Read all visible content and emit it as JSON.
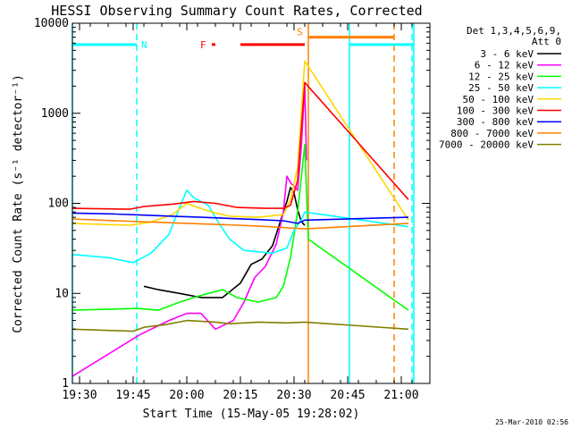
{
  "chart_data": {
    "type": "line",
    "title": "HESSI Observing Summary Count Rates, Corrected",
    "xlabel": "Start Time (15-May-05 19:28:02)",
    "ylabel": "Corrected Count Rate (s⁻¹ detector⁻¹)",
    "y_scale": "log",
    "ylim": [
      1,
      10000
    ],
    "xlim": [
      "19:28",
      "21:08"
    ],
    "x_ticks": [
      "19:30",
      "19:45",
      "20:00",
      "20:15",
      "20:30",
      "20:45",
      "21:00"
    ],
    "y_ticks": [
      "1",
      "10",
      "100",
      "1000",
      "10000"
    ],
    "grid": false,
    "legend_position": "right",
    "legend_header": [
      "Det 1,3,4,5,6,9,",
      "Att 0"
    ],
    "timestamp": "25-Mar-2010 02:56",
    "series": [
      {
        "name": "3 - 6 keV",
        "color": "#000000",
        "points": [
          [
            "19:48",
            12
          ],
          [
            "19:52",
            11
          ],
          [
            "19:58",
            10
          ],
          [
            "20:04",
            9
          ],
          [
            "20:10",
            9
          ],
          [
            "20:15",
            13
          ],
          [
            "20:18",
            21
          ],
          [
            "20:21",
            24
          ],
          [
            "20:24",
            34
          ],
          [
            "20:26",
            60
          ],
          [
            "20:28",
            105
          ],
          [
            "20:29",
            150
          ],
          [
            "20:30",
            130
          ],
          [
            "20:31",
            85
          ],
          [
            "20:32",
            63
          ],
          [
            "20:33",
            57
          ]
        ]
      },
      {
        "name": "6 - 12 keV",
        "color": "#ff00ff",
        "points": [
          [
            "19:28",
            1.2
          ],
          [
            "19:47",
            3.5
          ],
          [
            "19:55",
            5
          ],
          [
            "20:00",
            6
          ],
          [
            "20:04",
            6
          ],
          [
            "20:08",
            4
          ],
          [
            "20:13",
            5
          ],
          [
            "20:16",
            8
          ],
          [
            "20:19",
            15
          ],
          [
            "20:22",
            20
          ],
          [
            "20:25",
            35
          ],
          [
            "20:27",
            80
          ],
          [
            "20:28",
            200
          ],
          [
            "20:29",
            170
          ],
          [
            "20:31",
            140
          ],
          [
            "20:32",
            400
          ],
          [
            "20:33",
            2000
          ],
          [
            "20:33:30",
            300
          ]
        ]
      },
      {
        "name": "12 - 25 keV",
        "color": "#00ff00",
        "points": [
          [
            "19:28",
            6.5
          ],
          [
            "19:46",
            6.8
          ],
          [
            "19:52",
            6.5
          ],
          [
            "19:58",
            8
          ],
          [
            "20:02",
            9
          ],
          [
            "20:06",
            10
          ],
          [
            "20:10",
            11
          ],
          [
            "20:14",
            9
          ],
          [
            "20:20",
            8
          ],
          [
            "20:25",
            9
          ],
          [
            "20:27",
            12
          ],
          [
            "20:29",
            25
          ],
          [
            "20:31",
            80
          ],
          [
            "20:33",
            450
          ],
          [
            "20:34",
            40
          ],
          [
            "21:02",
            6.5
          ],
          [
            "21:03:30",
            5
          ]
        ]
      },
      {
        "name": "25 - 50 keV",
        "color": "#00ffff",
        "points": [
          [
            "19:28",
            27
          ],
          [
            "19:38",
            25
          ],
          [
            "19:45",
            22
          ],
          [
            "19:50",
            28
          ],
          [
            "19:55",
            45
          ],
          [
            "19:58",
            90
          ],
          [
            "20:00",
            140
          ],
          [
            "20:02",
            115
          ],
          [
            "20:06",
            95
          ],
          [
            "20:09",
            60
          ],
          [
            "20:12",
            40
          ],
          [
            "20:16",
            30
          ],
          [
            "20:24",
            28
          ],
          [
            "20:28",
            32
          ],
          [
            "20:30",
            50
          ],
          [
            "20:32",
            65
          ],
          [
            "20:33",
            80
          ],
          [
            "21:02",
            55
          ],
          [
            "21:03:30",
            45
          ]
        ]
      },
      {
        "name": "50 - 100 keV",
        "color": "#ffd700",
        "points": [
          [
            "19:28",
            60
          ],
          [
            "19:44",
            57
          ],
          [
            "19:50",
            62
          ],
          [
            "19:56",
            75
          ],
          [
            "20:00",
            100
          ],
          [
            "20:03",
            90
          ],
          [
            "20:07",
            80
          ],
          [
            "20:12",
            72
          ],
          [
            "20:20",
            70
          ],
          [
            "20:27",
            75
          ],
          [
            "20:29",
            110
          ],
          [
            "20:31",
            250
          ],
          [
            "20:33",
            3800
          ],
          [
            "21:02",
            65
          ],
          [
            "21:03:30",
            58
          ]
        ]
      },
      {
        "name": "100 - 300 keV",
        "color": "#ff0000",
        "points": [
          [
            "19:28",
            88
          ],
          [
            "19:44",
            86
          ],
          [
            "19:48",
            92
          ],
          [
            "19:56",
            98
          ],
          [
            "20:02",
            105
          ],
          [
            "20:08",
            100
          ],
          [
            "20:14",
            90
          ],
          [
            "20:22",
            88
          ],
          [
            "20:27",
            88
          ],
          [
            "20:29",
            95
          ],
          [
            "20:31",
            180
          ],
          [
            "20:33",
            2200
          ],
          [
            "21:02",
            110
          ],
          [
            "21:03:30",
            95
          ]
        ]
      },
      {
        "name": "300 - 800 keV",
        "color": "#0000ff",
        "points": [
          [
            "19:28",
            78
          ],
          [
            "19:40",
            76
          ],
          [
            "19:48",
            74
          ],
          [
            "19:56",
            72
          ],
          [
            "20:04",
            70
          ],
          [
            "20:12",
            68
          ],
          [
            "20:20",
            66
          ],
          [
            "20:27",
            64
          ],
          [
            "20:31",
            60
          ],
          [
            "20:33",
            65
          ],
          [
            "21:02",
            70
          ],
          [
            "21:03:30",
            62
          ]
        ]
      },
      {
        "name": "800 - 7000 keV",
        "color": "#ff8000",
        "points": [
          [
            "19:28",
            67
          ],
          [
            "19:40",
            64
          ],
          [
            "19:50",
            62
          ],
          [
            "20:00",
            60
          ],
          [
            "20:10",
            58
          ],
          [
            "20:20",
            56
          ],
          [
            "20:33",
            52
          ],
          [
            "21:02",
            60
          ],
          [
            "21:03:30",
            57
          ]
        ]
      },
      {
        "name": "7000 - 20000 keV",
        "color": "#808000",
        "points": [
          [
            "19:28",
            4
          ],
          [
            "19:45",
            3.8
          ],
          [
            "19:48",
            4.2
          ],
          [
            "19:54",
            4.5
          ],
          [
            "20:00",
            5
          ],
          [
            "20:08",
            4.8
          ],
          [
            "20:12",
            4.6
          ],
          [
            "20:20",
            4.8
          ],
          [
            "20:28",
            4.7
          ],
          [
            "20:33",
            4.8
          ],
          [
            "21:02",
            4
          ],
          [
            "21:03:30",
            3.6
          ]
        ]
      }
    ],
    "markers": {
      "night_label": "N",
      "saa_label": "S",
      "flare_label": "F",
      "cyan_solid_lines": [
        "19:28",
        "20:45:30",
        "21:03:30"
      ],
      "cyan_dashed_lines": [
        "19:46",
        "21:03"
      ],
      "orange_solid_lines": [
        "20:34"
      ],
      "orange_dashed_lines": [
        "20:58"
      ],
      "cyan_bars": [
        [
          "19:28",
          "19:46"
        ],
        [
          "20:45:30",
          "21:03:30"
        ]
      ],
      "orange_bars": [
        [
          "20:34",
          "20:58"
        ]
      ],
      "red_bars": [
        [
          "20:07",
          "20:08"
        ],
        [
          "20:15",
          "20:33"
        ]
      ],
      "bar_level": 5800
    },
    "data_gaps": [
      [
        "20:34",
        "21:02"
      ]
    ]
  }
}
